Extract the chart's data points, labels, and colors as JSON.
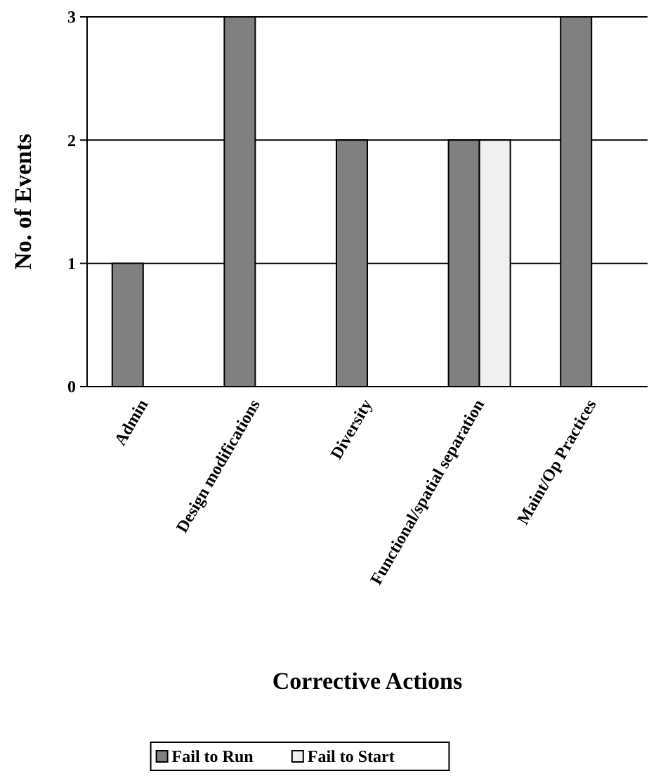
{
  "chart_data": {
    "type": "bar",
    "xlabel": "Corrective Actions",
    "ylabel": "No. of Events",
    "categories": [
      "Admin",
      "Design modifications",
      "Diversity",
      "Functional/spatial separation",
      "Maint/Op Practices"
    ],
    "series": [
      {
        "name": "Fail to Run",
        "color": "#808080",
        "values": [
          1,
          3,
          2,
          2,
          3
        ]
      },
      {
        "name": "Fail to Start",
        "color": "#f0f0f0",
        "values": [
          0,
          0,
          0,
          2,
          0
        ]
      }
    ],
    "ylim": [
      0,
      3
    ],
    "yticks": [
      0,
      1,
      2,
      3
    ],
    "grid": "y",
    "legend": "bottom"
  }
}
